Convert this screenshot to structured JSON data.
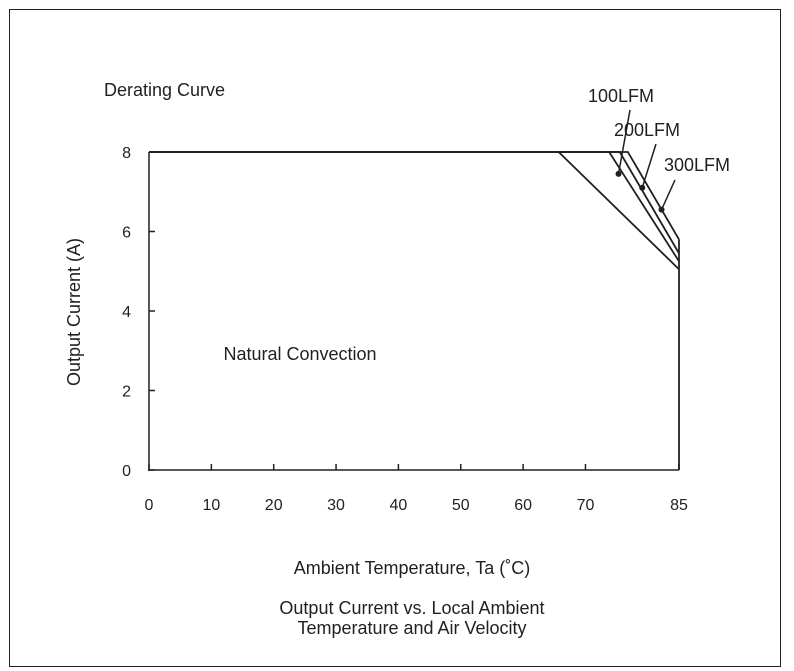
{
  "chart_data": {
    "type": "line",
    "subtitle": "Derating Curve",
    "xlabel": "Ambient Temperature,  Ta (˚C)",
    "ylabel": "Output Current (A)",
    "caption_line1": "Output Current vs. Local Ambient",
    "caption_line2": "Temperature and Air Velocity",
    "xlim": [
      0,
      85
    ],
    "ylim": [
      0,
      8
    ],
    "x_ticks": [
      0,
      10,
      20,
      30,
      40,
      50,
      60,
      70,
      85
    ],
    "y_ticks": [
      0,
      2,
      4,
      6,
      8
    ],
    "grid": false,
    "annotation": "Natural Convection",
    "series": [
      {
        "name": "Natural Convection",
        "x": [
          0,
          65.7,
          85
        ],
        "y": [
          8,
          8,
          5.05
        ],
        "label_kind": "region"
      },
      {
        "name": "100LFM",
        "x": [
          0,
          73.8,
          85
        ],
        "y": [
          8,
          8,
          5.25
        ],
        "label_kind": "callout",
        "marker": [
          75.3,
          7.45
        ]
      },
      {
        "name": "200LFM",
        "x": [
          0,
          75.5,
          85
        ],
        "y": [
          8,
          8,
          5.45
        ],
        "label_kind": "callout",
        "marker": [
          79.1,
          7.1
        ]
      },
      {
        "name": "300LFM",
        "x": [
          0,
          76.8,
          85
        ],
        "y": [
          8,
          8,
          5.8
        ],
        "label_kind": "callout",
        "marker": [
          82.2,
          6.55
        ]
      }
    ]
  }
}
